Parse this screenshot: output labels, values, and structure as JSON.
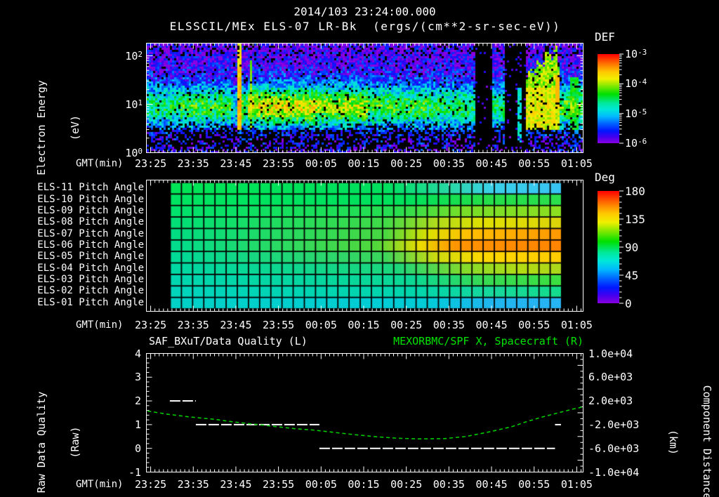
{
  "header": {
    "datetime": "2014/103 23:24:00.000",
    "subtitle": "ELSSCIL/MEx ELS-07 LR-Bk  (ergs/(cm**2-sr-sec-eV))"
  },
  "colors": {
    "background": "#000000",
    "text": "#ffffff",
    "frame": "#ffffff",
    "title_green": "#00e400",
    "curve_green": "#00cc00",
    "quality_white": "#ffffff"
  },
  "top_panel": {
    "ylabel_line1": "Electron Energy",
    "ylabel_line2": "(eV)",
    "ytick_exponents": [
      2,
      1,
      0
    ],
    "xaxis_label": "GMT(min)",
    "xtick_labels": [
      "23:25",
      "23:35",
      "23:45",
      "23:55",
      "00:05",
      "00:15",
      "00:25",
      "00:35",
      "00:45",
      "00:55",
      "01:05"
    ],
    "colorbar": {
      "title": "DEF",
      "tick_exponents": [
        -3,
        -4,
        -5,
        -6
      ]
    }
  },
  "middle_panel": {
    "row_labels": [
      "ELS-11 Pitch Angle",
      "ELS-10 Pitch Angle",
      "ELS-09 Pitch Angle",
      "ELS-08 Pitch Angle",
      "ELS-07 Pitch Angle",
      "ELS-06 Pitch Angle",
      "ELS-05 Pitch Angle",
      "ELS-04 Pitch Angle",
      "ELS-03 Pitch Angle",
      "ELS-02 Pitch Angle",
      "ELS-01 Pitch Angle"
    ],
    "xaxis_label": "GMT(min)",
    "xtick_labels": [
      "23:25",
      "23:35",
      "23:45",
      "23:55",
      "00:05",
      "00:15",
      "00:25",
      "00:35",
      "00:45",
      "00:55",
      "01:05"
    ],
    "colorbar": {
      "title": "Deg",
      "ticks": [
        180,
        135,
        90,
        45,
        0
      ]
    }
  },
  "bottom_panel": {
    "title_left": "SAF_BXuT/Data Quality (L)",
    "title_right": "MEXORBMC/SPF X, Spacecraft (R)",
    "ylabel_left_line1": "Raw Data Quality",
    "ylabel_left_line2": "(Raw)",
    "ylabel_right_line1": "Component Distance",
    "ylabel_right_line2": "(km)",
    "left_ticks": [
      4,
      3,
      2,
      1,
      0,
      -1
    ],
    "right_tick_labels": [
      "1.0e+04",
      "6.0e+03",
      "2.0e+03",
      "-2.0e+03",
      "-6.0e+03",
      "-1.0e+04"
    ],
    "xaxis_label": "GMT(min)",
    "xtick_labels": [
      "23:25",
      "23:35",
      "23:45",
      "23:55",
      "00:05",
      "00:15",
      "00:25",
      "00:35",
      "00:45",
      "00:55",
      "01:05"
    ]
  },
  "chart_data": [
    {
      "type": "heatmap",
      "name": "electron_energy_spectrogram",
      "title": "ELSSCIL/MEx ELS-07 LR-Bk",
      "units": "ergs/(cm**2-sr-sec-eV)",
      "x_start": "23:24",
      "x_span_minutes": 102.5,
      "y_range_ev": [
        1,
        190
      ],
      "y_scale": "log",
      "value_range_log10": [
        -6,
        -3
      ],
      "colormap_stops": [
        [
          0.0,
          "#ff0000"
        ],
        [
          0.1,
          "#ff6a00"
        ],
        [
          0.2,
          "#ffc800"
        ],
        [
          0.28,
          "#f0f000"
        ],
        [
          0.36,
          "#7fe800"
        ],
        [
          0.45,
          "#00e000"
        ],
        [
          0.55,
          "#00e89c"
        ],
        [
          0.62,
          "#00e8d8"
        ],
        [
          0.7,
          "#00baff"
        ],
        [
          0.78,
          "#0064ff"
        ],
        [
          0.86,
          "#0018ff"
        ],
        [
          0.93,
          "#4400f0"
        ],
        [
          1.0,
          "#8a00e0"
        ]
      ],
      "features": {
        "background_log10": -5.75,
        "noise": 0.9,
        "black_speckle": 0.07,
        "band": {
          "center_log10_ev": 0.95,
          "sigma": 0.3,
          "segments_min_amp": [
            [
              0,
              8,
              1.2
            ],
            [
              8,
              20,
              1.4
            ],
            [
              20,
              21.2,
              0.8
            ],
            [
              21.2,
              22.8,
              1.6
            ],
            [
              22.8,
              23.9,
              1.3
            ],
            [
              23.9,
              40,
              1.9
            ],
            [
              40,
              52,
              1.75
            ],
            [
              52,
              66,
              1.4
            ],
            [
              66,
              77.5,
              1.25
            ],
            [
              81.3,
              84.2,
              1.2
            ],
            [
              97.2,
              102.5,
              1.5
            ]
          ]
        },
        "streaks": [
          {
            "t_min": 21.9,
            "width_min": 1.4,
            "center_level": -3.55,
            "max_log10_ev": 2.25
          },
          {
            "t_min": 24.6,
            "width_min": 0.9,
            "center_level": -3.95,
            "max_log10_ev": 1.9
          }
        ],
        "gaps_min": [
          [
            77.5,
            81.3
          ],
          [
            84.2,
            89.2
          ]
        ],
        "gap_speckle": 0.06,
        "gap_inner_column": {
          "t_min": [
            87.2,
            88.1
          ],
          "log10_ev": [
            0.2,
            1.35
          ],
          "level": -4.85
        },
        "blob": {
          "t_min": [
            89.2,
            97.2
          ],
          "level": -4.05,
          "top_profile_log10_ev": [
            1.5,
            1.75,
            1.6,
            1.95,
            1.75,
            2.2,
            1.9,
            2.25,
            1.7
          ],
          "yellow_t_min": 96.4,
          "yellow_log10_ev": [
            1.0,
            1.6
          ],
          "yellow_level": -3.55
        },
        "green_column_post": {
          "t_min": [
            99.3,
            101.5
          ],
          "max_log10_ev": 1.55,
          "level": -4.4
        },
        "dark_bottom_log10_ev": 0.45,
        "dark_bottom_black": 0.55,
        "high_e_black": {
          "above_log10_ev": 1.95,
          "frac": 0.12
        }
      }
    },
    {
      "type": "heatmap",
      "name": "pitch_angle_grid",
      "x_start": "23:24",
      "data_start_min": 5.6,
      "data_end_min": 97.3,
      "angle_range_deg": [
        0,
        180
      ],
      "rows": [
        {
          "label": "ELS-11",
          "stops": [
            [
              0,
              "#00e455"
            ],
            [
              0.55,
              "#00e05e"
            ],
            [
              0.72,
              "#2ad8a8"
            ],
            [
              0.82,
              "#3cd0e8"
            ],
            [
              1,
              "#38c4f4"
            ]
          ]
        },
        {
          "label": "ELS-10",
          "stops": [
            [
              0,
              "#00e562"
            ],
            [
              0.6,
              "#00e25c"
            ],
            [
              0.8,
              "#24de4a"
            ],
            [
              1,
              "#2ce04c"
            ]
          ]
        },
        {
          "label": "ELS-09",
          "stops": [
            [
              0,
              "#00e26d"
            ],
            [
              0.58,
              "#28de50"
            ],
            [
              0.75,
              "#78de28"
            ],
            [
              1,
              "#8ce020"
            ]
          ]
        },
        {
          "label": "ELS-08",
          "stops": [
            [
              0,
              "#00e078"
            ],
            [
              0.55,
              "#40da48"
            ],
            [
              0.68,
              "#b0dc1c"
            ],
            [
              0.8,
              "#e0e000"
            ],
            [
              1,
              "#dcd40a"
            ]
          ]
        },
        {
          "label": "ELS-07",
          "stops": [
            [
              0,
              "#00de84"
            ],
            [
              0.55,
              "#48d842"
            ],
            [
              0.66,
              "#dce000"
            ],
            [
              0.76,
              "#ffc000"
            ],
            [
              1,
              "#ff9800"
            ]
          ]
        },
        {
          "label": "ELS-06",
          "stops": [
            [
              0,
              "#00dc8e"
            ],
            [
              0.53,
              "#52d83c"
            ],
            [
              0.64,
              "#ecdc00"
            ],
            [
              0.73,
              "#ff9400"
            ],
            [
              1,
              "#ff8400"
            ]
          ]
        },
        {
          "label": "ELS-05",
          "stops": [
            [
              0,
              "#00da98"
            ],
            [
              0.55,
              "#3cd65c"
            ],
            [
              0.68,
              "#ccdc10"
            ],
            [
              0.8,
              "#ffd800"
            ],
            [
              1,
              "#ffcc00"
            ]
          ]
        },
        {
          "label": "ELS-04",
          "stops": [
            [
              0,
              "#00d8a4"
            ],
            [
              0.58,
              "#1cd67c"
            ],
            [
              0.75,
              "#84da2c"
            ],
            [
              0.9,
              "#b4dc14"
            ],
            [
              1,
              "#acd81c"
            ]
          ]
        },
        {
          "label": "ELS-03",
          "stops": [
            [
              0,
              "#00d6b0"
            ],
            [
              0.62,
              "#0cd894"
            ],
            [
              0.8,
              "#38da54"
            ],
            [
              1,
              "#3ce040"
            ]
          ]
        },
        {
          "label": "ELS-02",
          "stops": [
            [
              0,
              "#00d4bc"
            ],
            [
              0.62,
              "#00d6ac"
            ],
            [
              0.82,
              "#18d89c"
            ],
            [
              1,
              "#14dc8c"
            ]
          ]
        },
        {
          "label": "ELS-01",
          "stops": [
            [
              0,
              "#00d2c6"
            ],
            [
              0.66,
              "#00ccd8"
            ],
            [
              0.82,
              "#20b6ee"
            ],
            [
              1,
              "#28b4f4"
            ]
          ]
        }
      ]
    },
    {
      "type": "line",
      "name": "data_quality_and_spacecraft_distance",
      "x_start": "23:24",
      "x_span_minutes": 102.5,
      "left_axis": {
        "label": "Raw Data Quality (Raw)",
        "range": [
          -1,
          4
        ]
      },
      "right_axis": {
        "label": "Component Distance (km)",
        "range": [
          -10000,
          10000
        ]
      },
      "series": [
        {
          "name": "SAF_BXuT/Data Quality",
          "axis": "left",
          "style": "dashed",
          "segments": [
            {
              "value": 2,
              "start_min": 5.5,
              "end_min": 11.6
            },
            {
              "value": 1,
              "start_min": 11.6,
              "end_min": 40.6
            },
            {
              "value": 0,
              "start_min": 40.6,
              "end_min": 95.9
            },
            {
              "value": 1,
              "start_min": 95.9,
              "end_min": 97.3
            }
          ]
        },
        {
          "name": "MEXORBMC/SPF X, Spacecraft",
          "axis": "right",
          "style": "dashed",
          "points_min_km": [
            [
              0.3,
              300
            ],
            [
              5,
              -250
            ],
            [
              10,
              -700
            ],
            [
              16,
              -1100
            ],
            [
              20,
              -1500
            ],
            [
              25,
              -1900
            ],
            [
              30,
              -2300
            ],
            [
              35,
              -2700
            ],
            [
              39,
              -2900
            ],
            [
              44,
              -3300
            ],
            [
              49,
              -3700
            ],
            [
              54,
              -4050
            ],
            [
              59,
              -4300
            ],
            [
              64,
              -4400
            ],
            [
              70,
              -4350
            ],
            [
              75,
              -4000
            ],
            [
              81,
              -3150
            ],
            [
              86,
              -2300
            ],
            [
              89,
              -1550
            ],
            [
              93,
              -700
            ],
            [
              97,
              50
            ],
            [
              100,
              600
            ],
            [
              102.3,
              970
            ]
          ]
        }
      ]
    }
  ]
}
